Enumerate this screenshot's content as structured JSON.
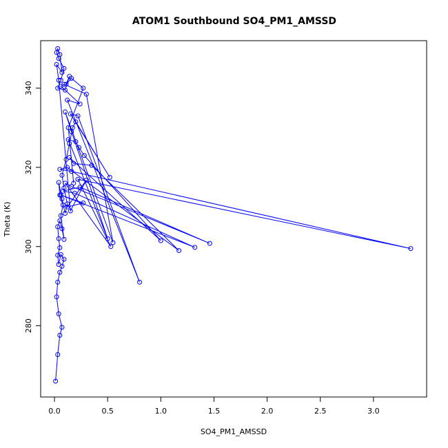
{
  "chart_data": {
    "type": "line",
    "title": "ATOM1 Southbound SO4_PM1_AMSSD",
    "xlabel": "SO4_PM1_AMSSD",
    "ylabel": "Theta (K)",
    "xlim": [
      -0.13,
      3.5
    ],
    "ylim": [
      262,
      352
    ],
    "xticks": [
      0.0,
      0.5,
      1.0,
      1.5,
      2.0,
      2.5,
      3.0
    ],
    "xtick_labels": [
      "0.0",
      "0.5",
      "1.0",
      "1.5",
      "2.0",
      "2.5",
      "3.0"
    ],
    "yticks": [
      280,
      300,
      320,
      340
    ],
    "ytick_labels": [
      "280",
      "300",
      "320",
      "340"
    ],
    "grid": false,
    "marker": "open-circle",
    "color": "#0000ff",
    "series": [
      {
        "x": [
          0.01,
          0.03,
          0.05,
          0.07,
          0.04,
          0.02,
          0.03,
          0.05,
          0.07,
          0.09,
          0.06,
          0.04,
          0.03,
          0.05,
          0.04,
          0.03,
          0.05,
          0.07,
          0.09,
          0.06,
          0.08,
          0.05,
          0.04,
          0.07,
          0.1,
          0.12,
          0.09,
          0.07,
          0.11,
          0.14,
          0.17,
          0.2,
          0.52,
          0.15,
          0.22,
          0.8,
          0.12,
          0.24,
          0.06,
          0.09,
          0.3,
          0.55,
          0.1,
          0.16,
          0.5,
          0.13,
          0.2,
          0.23,
          0.28,
          1.0,
          0.14,
          0.18,
          0.35,
          1.17,
          0.12,
          0.05,
          0.16,
          3.35,
          0.22,
          0.53,
          0.1,
          0.16,
          1.46,
          0.24,
          0.08,
          0.19,
          1.32,
          0.06,
          0.27,
          0.12,
          0.3,
          0.15,
          0.04,
          0.02,
          0.07,
          0.05,
          0.03,
          0.02,
          0.04,
          0.09,
          0.06,
          0.03,
          0.1,
          0.14,
          0.11,
          0.16,
          0.27,
          0.13,
          0.18
        ],
        "y": [
          266.0,
          272.7,
          277.6,
          279.6,
          283.0,
          287.3,
          291.0,
          293.5,
          295.0,
          296.8,
          298.0,
          295.5,
          297.8,
          299.7,
          302.0,
          305.0,
          306.5,
          304.5,
          301.8,
          307.8,
          310.5,
          313.0,
          316.2,
          312.0,
          308.4,
          310.8,
          314.8,
          318.0,
          322.0,
          326.0,
          330.0,
          331.5,
          317.5,
          333.5,
          333.0,
          291.0,
          337.0,
          336.0,
          340.5,
          341.0,
          338.5,
          301.0,
          334.0,
          329.0,
          302.0,
          327.0,
          326.5,
          325.0,
          323.0,
          301.5,
          322.5,
          321.0,
          320.5,
          299.0,
          320.0,
          319.5,
          319.0,
          299.5,
          317.0,
          300.0,
          316.0,
          315.2,
          300.8,
          315.0,
          314.0,
          313.5,
          299.8,
          313.0,
          311.0,
          310.0,
          316.8,
          309.0,
          342.0,
          346.0,
          344.0,
          348.5,
          350.0,
          349.0,
          347.5,
          345.0,
          342.0,
          340.0,
          339.5,
          343.0,
          341.0,
          342.5,
          340.0,
          330.0,
          316.0
        ]
      }
    ]
  }
}
